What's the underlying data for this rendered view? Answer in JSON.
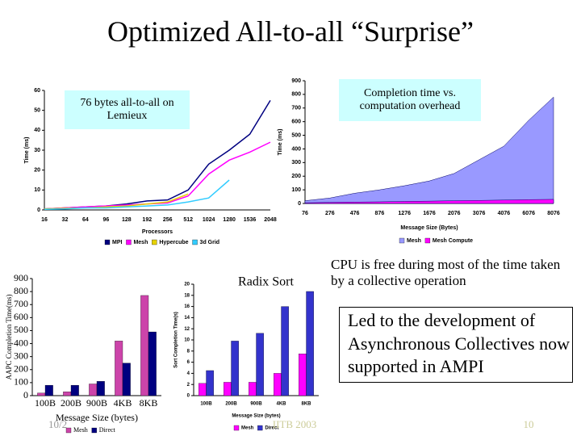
{
  "slide": {
    "title": "Optimized All-to-all “Surprise”",
    "callouts": [
      "CPU is free during most of the time taken by a collective operation",
      "Led to the development of Asynchronous Collectives now supported in AMPI"
    ],
    "footer": {
      "date": "10/2",
      "center": "IITB 2003",
      "page": "10"
    }
  },
  "chart_data": [
    {
      "type": "line",
      "annotation": "76 bytes all-to-all on Lemieux",
      "x_label": "Processors",
      "y_label": "Time (ms)",
      "categories": [
        "16",
        "32",
        "64",
        "96",
        "128",
        "192",
        "256",
        "512",
        "1024",
        "1280",
        "1536",
        "2048"
      ],
      "ylim": [
        0,
        60
      ],
      "yticks": [
        0,
        10,
        20,
        30,
        40,
        50,
        60
      ],
      "series": [
        {
          "name": "MPI",
          "color": "#000080",
          "values": [
            0.5,
            1,
            1.5,
            2,
            3,
            4.5,
            5,
            10,
            23,
            30,
            38,
            55
          ]
        },
        {
          "name": "Mesh",
          "color": "#ff00ff",
          "values": [
            0.5,
            1,
            1.5,
            2,
            2.5,
            3,
            3.5,
            7,
            18,
            25,
            29,
            34
          ]
        },
        {
          "name": "Hypercube",
          "color": "#e6d200",
          "values": [
            0.5,
            0.8,
            1,
            1.5,
            2,
            3,
            4,
            8,
            null,
            null,
            null,
            null
          ]
        },
        {
          "name": "3d Grid",
          "color": "#33ccff",
          "values": [
            0.3,
            0.5,
            1,
            1,
            1.5,
            2,
            2.5,
            4,
            6,
            15,
            null,
            null
          ]
        }
      ]
    },
    {
      "type": "area",
      "annotation": "Completion time vs. computation overhead",
      "x_label": "Message Size (Bytes)",
      "y_label": "Time (ms)",
      "categories": [
        "76",
        "276",
        "476",
        "876",
        "1276",
        "1676",
        "2076",
        "3076",
        "4076",
        "6076",
        "8076"
      ],
      "ylim": [
        0,
        900
      ],
      "yticks": [
        0,
        100,
        200,
        300,
        400,
        500,
        600,
        700,
        800,
        900
      ],
      "series": [
        {
          "name": "Mesh",
          "color": "#9999ff",
          "values": [
            20,
            40,
            75,
            100,
            130,
            165,
            220,
            320,
            420,
            610,
            780
          ]
        },
        {
          "name": "Mesh Compute",
          "color": "#ff00ff",
          "values": [
            5,
            8,
            10,
            12,
            15,
            17,
            20,
            22,
            25,
            28,
            30
          ]
        }
      ]
    },
    {
      "type": "bar",
      "x_label": "Message Size (bytes)",
      "y_label": "AAPC Completion Time(ms)",
      "categories": [
        "100B",
        "200B",
        "900B",
        "4KB",
        "8KB"
      ],
      "ylim": [
        0,
        900
      ],
      "yticks": [
        0,
        100,
        200,
        300,
        400,
        500,
        600,
        700,
        800,
        900
      ],
      "series": [
        {
          "name": "Mesh",
          "color": "#cc44aa",
          "values": [
            20,
            30,
            90,
            420,
            770
          ]
        },
        {
          "name": "Direct",
          "color": "#000080",
          "values": [
            80,
            80,
            110,
            250,
            490
          ]
        }
      ]
    },
    {
      "type": "bar",
      "title": "Radix Sort",
      "x_label": "Message Size (bytes)",
      "y_label": "Sort Completion Time(s)",
      "categories": [
        "100B",
        "200B",
        "900B",
        "4KB",
        "8KB"
      ],
      "ylim": [
        0,
        20
      ],
      "yticks": [
        0,
        2,
        4,
        6,
        8,
        10,
        12,
        14,
        16,
        18,
        20
      ],
      "series": [
        {
          "name": "Mesh",
          "color": "#ff00ff",
          "values": [
            2.2,
            2.4,
            2.4,
            4,
            7.5
          ]
        },
        {
          "name": "Direct",
          "color": "#3333cc",
          "values": [
            4.5,
            9.8,
            11.2,
            16,
            18.7
          ]
        }
      ]
    }
  ]
}
